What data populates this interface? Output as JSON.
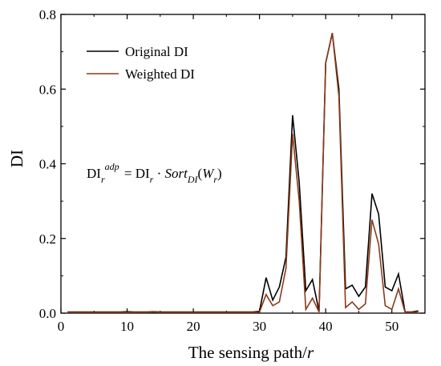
{
  "chart_data": {
    "type": "line",
    "xlabel_main": "The sensing path/",
    "xlabel_var": "r",
    "ylabel": "DI",
    "xlim": [
      0,
      55
    ],
    "ylim": [
      0,
      0.8
    ],
    "xticks": [
      0,
      10,
      20,
      30,
      40,
      50
    ],
    "yticks": [
      0.0,
      0.2,
      0.4,
      0.6,
      0.8
    ],
    "ytick_labels": [
      "0.0",
      "0.2",
      "0.4",
      "0.6",
      "0.8"
    ],
    "grid": false,
    "legend_position": "top-left",
    "x": [
      1,
      2,
      3,
      4,
      5,
      6,
      7,
      8,
      9,
      10,
      11,
      12,
      13,
      14,
      15,
      16,
      17,
      18,
      19,
      20,
      21,
      22,
      23,
      24,
      25,
      26,
      27,
      28,
      29,
      30,
      31,
      32,
      33,
      34,
      35,
      36,
      37,
      38,
      39,
      40,
      41,
      42,
      43,
      44,
      45,
      46,
      47,
      48,
      49,
      50,
      51,
      52,
      53,
      54
    ],
    "series": [
      {
        "name": "Original DI",
        "color": "#000000",
        "values": [
          0.003,
          0.003,
          0.003,
          0.003,
          0.003,
          0.003,
          0.003,
          0.003,
          0.003,
          0.004,
          0.003,
          0.003,
          0.003,
          0.004,
          0.003,
          0.003,
          0.003,
          0.003,
          0.003,
          0.003,
          0.003,
          0.003,
          0.003,
          0.003,
          0.003,
          0.003,
          0.003,
          0.003,
          0.003,
          0.005,
          0.095,
          0.035,
          0.07,
          0.15,
          0.53,
          0.35,
          0.06,
          0.09,
          0.005,
          0.67,
          0.75,
          0.6,
          0.065,
          0.075,
          0.045,
          0.07,
          0.32,
          0.265,
          0.07,
          0.06,
          0.105,
          0.003,
          0.003,
          0.006
        ]
      },
      {
        "name": "Weighted DI",
        "color": "#8B3A1A",
        "values": [
          0.002,
          0.002,
          0.002,
          0.002,
          0.002,
          0.002,
          0.002,
          0.002,
          0.002,
          0.002,
          0.002,
          0.002,
          0.002,
          0.003,
          0.002,
          0.002,
          0.002,
          0.002,
          0.002,
          0.002,
          0.002,
          0.002,
          0.002,
          0.002,
          0.002,
          0.002,
          0.002,
          0.002,
          0.002,
          0.003,
          0.05,
          0.02,
          0.03,
          0.12,
          0.48,
          0.3,
          0.01,
          0.04,
          0.003,
          0.67,
          0.75,
          0.58,
          0.015,
          0.03,
          0.01,
          0.025,
          0.25,
          0.185,
          0.02,
          0.01,
          0.065,
          0.002,
          0.002,
          0.004
        ]
      }
    ],
    "formula": {
      "lhs_base": "DI",
      "lhs_sub": "r",
      "lhs_sup": "adp",
      "eq": " = DI",
      "rhs_sub": "r",
      "dot": " · ",
      "fn": "Sort",
      "fn_sub": "DI",
      "arg_open": "(",
      "arg": "W",
      "arg_sub": "r",
      "arg_close": ")"
    }
  }
}
